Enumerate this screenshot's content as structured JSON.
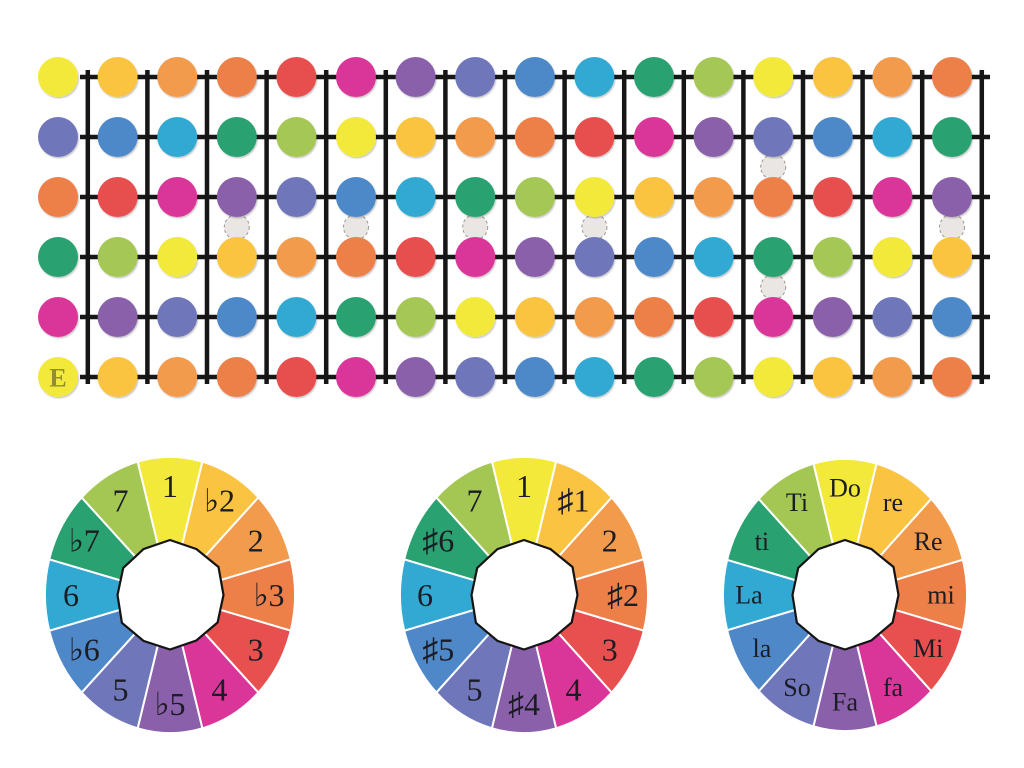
{
  "diagram": {
    "background_color": "#ffffff",
    "grid_line_color": "#161616",
    "inlay_fill_color": "#eae6e3",
    "inlay_border_color": "#9f9791",
    "wheel_center_fill": "#ffffff",
    "wheel_outline_color": "#141414"
  },
  "palette": [
    {
      "degree_flat": "1",
      "degree_sharp": "1",
      "solfege": "Do",
      "color": "#f2e93b"
    },
    {
      "degree_flat": "♭2",
      "degree_sharp": "♯1",
      "solfege": "re",
      "color": "#fac341"
    },
    {
      "degree_flat": "2",
      "degree_sharp": "2",
      "solfege": "Re",
      "color": "#f29b4d"
    },
    {
      "degree_flat": "♭3",
      "degree_sharp": "♯2",
      "solfege": "mi",
      "color": "#ed7f49"
    },
    {
      "degree_flat": "3",
      "degree_sharp": "3",
      "solfege": "Mi",
      "color": "#e7504f"
    },
    {
      "degree_flat": "4",
      "degree_sharp": "4",
      "solfege": "fa",
      "color": "#da3598"
    },
    {
      "degree_flat": "♭5",
      "degree_sharp": "♯4",
      "solfege": "Fa",
      "color": "#8b60ab"
    },
    {
      "degree_flat": "5",
      "degree_sharp": "5",
      "solfege": "So",
      "color": "#7076ba"
    },
    {
      "degree_flat": "♭6",
      "degree_sharp": "♯5",
      "solfege": "la",
      "color": "#4e88c8"
    },
    {
      "degree_flat": "6",
      "degree_sharp": "6",
      "solfege": "La",
      "color": "#31a9d2"
    },
    {
      "degree_flat": "♭7",
      "degree_sharp": "♯6",
      "solfege": "ti",
      "color": "#2aa171"
    },
    {
      "degree_flat": "7",
      "degree_sharp": "7",
      "solfege": "Ti",
      "color": "#a4c754"
    }
  ],
  "fretboard": {
    "string_count": 6,
    "column_count": 16,
    "rows": [
      [
        0,
        1,
        2,
        3,
        4,
        5,
        6,
        7,
        8,
        9,
        10,
        11,
        0,
        1,
        2,
        3
      ],
      [
        7,
        8,
        9,
        10,
        11,
        0,
        1,
        2,
        3,
        4,
        5,
        6,
        7,
        8,
        9,
        10
      ],
      [
        3,
        4,
        5,
        6,
        7,
        8,
        9,
        10,
        11,
        0,
        1,
        2,
        3,
        4,
        5,
        6
      ],
      [
        10,
        11,
        0,
        1,
        2,
        3,
        4,
        5,
        6,
        7,
        8,
        9,
        10,
        11,
        0,
        1
      ],
      [
        5,
        6,
        7,
        8,
        9,
        10,
        11,
        0,
        1,
        2,
        3,
        4,
        5,
        6,
        7,
        8
      ],
      [
        0,
        1,
        2,
        3,
        4,
        5,
        6,
        7,
        8,
        9,
        10,
        11,
        0,
        1,
        2,
        3
      ]
    ],
    "inlay_single_frets": [
      3,
      5,
      7,
      9,
      15
    ],
    "inlay_double_frets": [
      12
    ],
    "open_string_watermark": {
      "row": 5,
      "col": 0,
      "text": "E"
    }
  },
  "wheels": [
    {
      "name": "flat-degrees",
      "labels_key": "degree_flat"
    },
    {
      "name": "sharp-degrees",
      "labels_key": "degree_sharp"
    },
    {
      "name": "solfege",
      "labels_key": "solfege"
    }
  ]
}
